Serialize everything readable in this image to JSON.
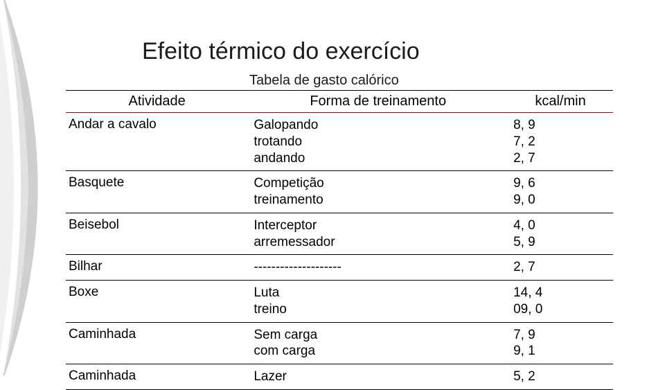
{
  "title": "Efeito térmico do exercício",
  "subtitle": "Tabela de gasto calórico",
  "columns": [
    "Atividade",
    "Forma de treinamento",
    "kcal/min"
  ],
  "rows": [
    {
      "activity": "Andar a cavalo",
      "forms": [
        "Galopando",
        "trotando",
        "andando"
      ],
      "kcal": [
        "8, 9",
        "7, 2",
        "2, 7"
      ]
    },
    {
      "activity": "Basquete",
      "forms": [
        "Competição",
        "treinamento"
      ],
      "kcal": [
        "9, 6",
        "9, 0"
      ]
    },
    {
      "activity": "Beisebol",
      "forms": [
        "Interceptor",
        "arremessador"
      ],
      "kcal": [
        "4, 0",
        "5, 9"
      ]
    },
    {
      "activity": "Bilhar",
      "forms": [
        "--------------------"
      ],
      "kcal": [
        "2, 7"
      ]
    },
    {
      "activity": "Boxe",
      "forms": [
        "Luta",
        "treino"
      ],
      "kcal": [
        "14, 4",
        "09, 0"
      ]
    },
    {
      "activity": "Caminhada",
      "forms": [
        "Sem carga",
        "com carga"
      ],
      "kcal": [
        "7, 9",
        "9, 1"
      ]
    },
    {
      "activity": "Caminhada",
      "forms": [
        "Lazer"
      ],
      "kcal": [
        "5, 2"
      ]
    }
  ],
  "colors": {
    "accent_red": "#c00000",
    "text": "#000000",
    "bg": "#ffffff",
    "arc_grey": "#d9d9d9"
  }
}
